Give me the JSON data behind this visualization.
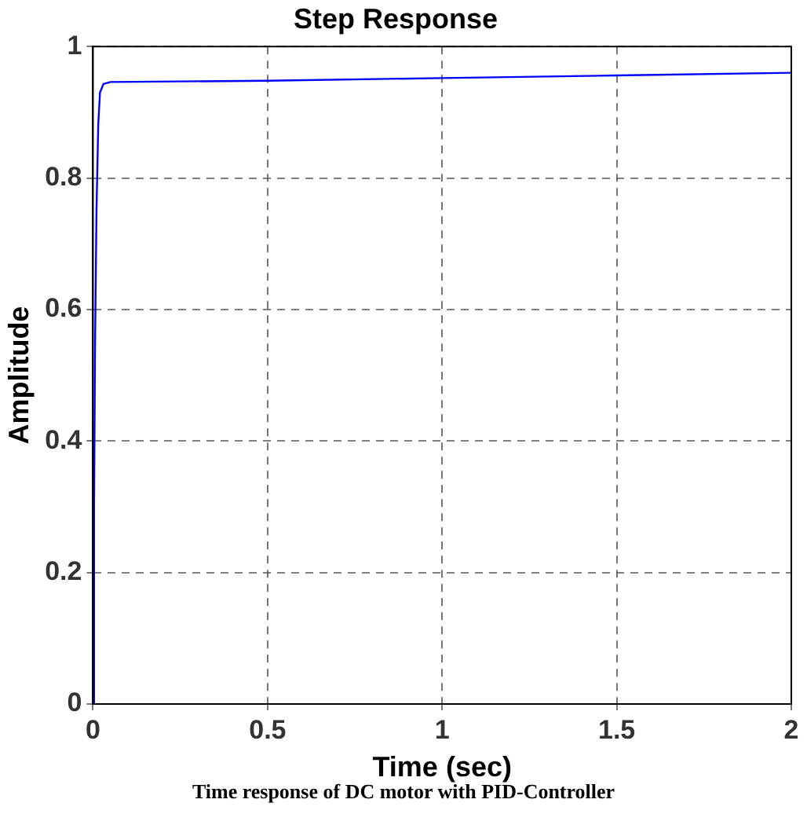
{
  "chart_data": {
    "type": "line",
    "title": "Step Response",
    "xlabel": "Time (sec)",
    "ylabel": "Amplitude",
    "annotations": [
      "Time response of DC motor with PID-Controller"
    ],
    "x": [
      0,
      0.003,
      0.006,
      0.01,
      0.015,
      0.02,
      0.03,
      0.05,
      0.5,
      1,
      1.5,
      2
    ],
    "series": [
      {
        "color": "#0000ff",
        "values": [
          0,
          0.3,
          0.55,
          0.75,
          0.88,
          0.93,
          0.943,
          0.946,
          0.948,
          0.952,
          0.956,
          0.96
        ]
      }
    ],
    "xlim": [
      0,
      2
    ],
    "xticks": [
      0,
      0.5,
      1,
      1.5,
      2
    ],
    "ylim": [
      0,
      1
    ],
    "yticks": [
      0,
      0.2,
      0.4,
      0.6,
      0.8,
      1
    ],
    "grid": true,
    "legend": false,
    "marker": "none",
    "line_style": "solid"
  }
}
